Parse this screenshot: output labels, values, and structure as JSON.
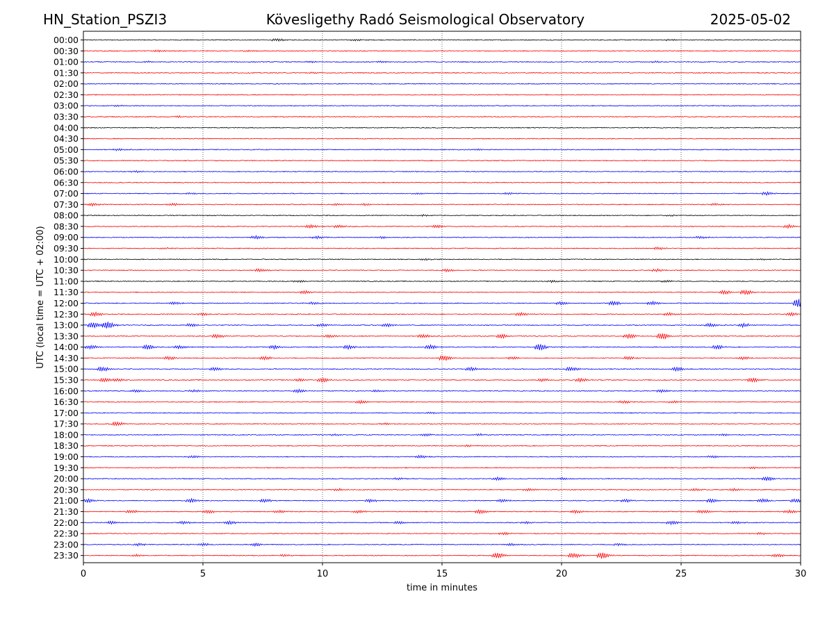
{
  "header": {
    "station": "HN_Station_PSZI3",
    "observatory": "Kövesligethy Radó Seismological Observatory",
    "date": "2025-05-02"
  },
  "colors": {
    "background": "#ffffff",
    "axis": "#000000",
    "grid": "#000000",
    "series_palette": [
      "#000000",
      "#ff0000",
      "#0000ff"
    ]
  },
  "chart_data": {
    "type": "line",
    "subtype": "helicorder",
    "title": "Kövesligethy Radó Seismological Observatory",
    "xlabel": "time in minutes",
    "ylabel": "UTC (local time = UTC + 02:00)",
    "xlim": [
      0,
      30
    ],
    "xticks": [
      0,
      5,
      10,
      15,
      20,
      25,
      30
    ],
    "grid": {
      "vertical_dotted_at": [
        5,
        10,
        15,
        20,
        25
      ],
      "horizontal": false
    },
    "legend": "none",
    "rows": [
      {
        "label": "00:00",
        "color": "#000000",
        "events": [
          [
            8.1,
            1
          ],
          [
            11.4,
            0.7
          ],
          [
            24.6,
            0.6
          ]
        ]
      },
      {
        "label": "00:30",
        "color": "#ff0000",
        "events": [
          [
            3.1,
            0.8
          ],
          [
            6.9,
            0.6
          ]
        ]
      },
      {
        "label": "01:00",
        "color": "#0000ff",
        "events": [
          [
            2.7,
            0.6
          ],
          [
            9.5,
            0.6
          ],
          [
            12.5,
            0.6
          ],
          [
            24.0,
            0.6
          ]
        ]
      },
      {
        "label": "01:30",
        "color": "#ff0000",
        "events": [
          [
            9.5,
            0.5
          ]
        ]
      },
      {
        "label": "02:00",
        "color": "#0000ff",
        "events": []
      },
      {
        "label": "02:30",
        "color": "#ff0000",
        "events": []
      },
      {
        "label": "03:00",
        "color": "#0000ff",
        "events": [
          [
            1.5,
            0.5
          ]
        ]
      },
      {
        "label": "03:30",
        "color": "#ff0000",
        "events": [
          [
            4.0,
            0.6
          ]
        ]
      },
      {
        "label": "04:00",
        "color": "#000000",
        "events": []
      },
      {
        "label": "04:30",
        "color": "#ff0000",
        "events": []
      },
      {
        "label": "05:00",
        "color": "#0000ff",
        "events": [
          [
            1.4,
            0.8
          ],
          [
            16.5,
            0.6
          ]
        ]
      },
      {
        "label": "05:30",
        "color": "#ff0000",
        "events": []
      },
      {
        "label": "06:00",
        "color": "#0000ff",
        "events": [
          [
            2.2,
            0.8
          ],
          [
            13.7,
            0.6
          ]
        ]
      },
      {
        "label": "06:30",
        "color": "#ff0000",
        "events": []
      },
      {
        "label": "07:00",
        "color": "#0000ff",
        "events": [
          [
            4.5,
            0.6
          ],
          [
            14.0,
            0.6
          ],
          [
            17.8,
            0.6
          ],
          [
            28.6,
            1.2
          ]
        ]
      },
      {
        "label": "07:30",
        "color": "#ff0000",
        "events": [
          [
            0.4,
            1.1
          ],
          [
            3.7,
            0.9
          ],
          [
            10.6,
            0.8
          ],
          [
            11.8,
            0.8
          ],
          [
            26.4,
            0.8
          ]
        ]
      },
      {
        "label": "08:00",
        "color": "#000000",
        "events": [
          [
            14.2,
            0.6
          ],
          [
            24.5,
            0.6
          ]
        ]
      },
      {
        "label": "08:30",
        "color": "#ff0000",
        "events": [
          [
            9.5,
            1.2
          ],
          [
            10.7,
            1.1
          ],
          [
            14.8,
            1.1
          ],
          [
            29.5,
            1.4
          ]
        ]
      },
      {
        "label": "09:00",
        "color": "#0000ff",
        "events": [
          [
            7.2,
            1.3
          ],
          [
            9.8,
            1
          ],
          [
            12.5,
            0.8
          ],
          [
            25.8,
            0.9
          ]
        ]
      },
      {
        "label": "09:30",
        "color": "#ff0000",
        "events": [
          [
            3.4,
            0.7
          ],
          [
            24.1,
            1
          ]
        ]
      },
      {
        "label": "10:00",
        "color": "#000000",
        "events": [
          [
            14.3,
            0.6
          ],
          [
            28.4,
            0.6
          ]
        ]
      },
      {
        "label": "10:30",
        "color": "#ff0000",
        "events": [
          [
            7.4,
            1.3
          ],
          [
            15.2,
            1.2
          ],
          [
            24.0,
            1
          ]
        ]
      },
      {
        "label": "11:00",
        "color": "#000000",
        "events": [
          [
            9.0,
            0.8
          ],
          [
            19.6,
            0.9
          ],
          [
            24.4,
            0.8
          ]
        ]
      },
      {
        "label": "11:30",
        "color": "#ff0000",
        "events": [
          [
            9.3,
            1.2
          ],
          [
            26.8,
            1.5
          ],
          [
            27.7,
            1.8
          ]
        ]
      },
      {
        "label": "12:00",
        "color": "#0000ff",
        "events": [
          [
            3.8,
            1
          ],
          [
            9.6,
            1
          ],
          [
            20.0,
            1.3
          ],
          [
            22.2,
            1.6
          ],
          [
            23.8,
            1.4
          ],
          [
            29.9,
            3.5
          ]
        ]
      },
      {
        "label": "12:30",
        "color": "#ff0000",
        "events": [
          [
            0.5,
            1.6
          ],
          [
            5.0,
            1
          ],
          [
            18.3,
            1.4
          ],
          [
            24.5,
            1.1
          ],
          [
            29.6,
            1.3
          ]
        ]
      },
      {
        "label": "13:00",
        "color": "#0000ff",
        "events": [
          [
            0.4,
            2.4
          ],
          [
            1.0,
            2.8
          ],
          [
            4.5,
            1.2
          ],
          [
            10.0,
            1.2
          ],
          [
            12.7,
            1.4
          ],
          [
            26.2,
            1.5
          ],
          [
            27.6,
            1.6
          ]
        ]
      },
      {
        "label": "13:30",
        "color": "#ff0000",
        "events": [
          [
            5.6,
            1.5
          ],
          [
            10.3,
            1.2
          ],
          [
            14.2,
            1.4
          ],
          [
            17.5,
            1.8
          ],
          [
            22.8,
            1.8
          ],
          [
            24.2,
            2.6
          ]
        ]
      },
      {
        "label": "14:00",
        "color": "#0000ff",
        "events": [
          [
            0.3,
            1.5
          ],
          [
            2.7,
            2
          ],
          [
            4.0,
            1.6
          ],
          [
            8.0,
            1.5
          ],
          [
            11.1,
            1.6
          ],
          [
            14.5,
            1.6
          ],
          [
            19.1,
            2.6
          ],
          [
            26.5,
            1.6
          ]
        ]
      },
      {
        "label": "14:30",
        "color": "#ff0000",
        "events": [
          [
            3.6,
            1.4
          ],
          [
            7.6,
            1.2
          ],
          [
            15.1,
            2.2
          ],
          [
            18.0,
            1.2
          ],
          [
            22.8,
            1.4
          ],
          [
            27.6,
            1.2
          ]
        ]
      },
      {
        "label": "15:00",
        "color": "#0000ff",
        "events": [
          [
            0.8,
            1.9
          ],
          [
            5.5,
            1.2
          ],
          [
            16.2,
            1.4
          ],
          [
            20.4,
            1.6
          ],
          [
            24.8,
            1.6
          ]
        ]
      },
      {
        "label": "15:30",
        "color": "#ff0000",
        "events": [
          [
            0.9,
            1.6
          ],
          [
            1.4,
            1.4
          ],
          [
            9.0,
            1
          ],
          [
            10.0,
            1.8
          ],
          [
            19.2,
            1.2
          ],
          [
            20.8,
            1.4
          ],
          [
            28.0,
            1.6
          ]
        ]
      },
      {
        "label": "16:00",
        "color": "#0000ff",
        "events": [
          [
            2.2,
            1.1
          ],
          [
            4.6,
            0.9
          ],
          [
            9.0,
            1.3
          ],
          [
            12.3,
            0.9
          ],
          [
            24.2,
            1
          ]
        ]
      },
      {
        "label": "16:30",
        "color": "#ff0000",
        "events": [
          [
            11.6,
            1.4
          ],
          [
            22.6,
            1
          ],
          [
            24.7,
            0.8
          ]
        ]
      },
      {
        "label": "17:00",
        "color": "#0000ff",
        "events": [
          [
            14.5,
            0.7
          ]
        ]
      },
      {
        "label": "17:30",
        "color": "#ff0000",
        "events": [
          [
            1.4,
            1.6
          ],
          [
            12.6,
            0.8
          ]
        ]
      },
      {
        "label": "18:00",
        "color": "#0000ff",
        "events": [
          [
            10.5,
            0.8
          ],
          [
            14.3,
            0.9
          ],
          [
            16.6,
            0.8
          ],
          [
            26.8,
            0.8
          ]
        ]
      },
      {
        "label": "18:30",
        "color": "#ff0000",
        "events": [
          [
            16.0,
            0.6
          ]
        ]
      },
      {
        "label": "19:00",
        "color": "#0000ff",
        "events": [
          [
            4.6,
            0.8
          ],
          [
            14.1,
            1.2
          ],
          [
            26.3,
            0.8
          ]
        ]
      },
      {
        "label": "19:30",
        "color": "#ff0000",
        "events": [
          [
            28.1,
            0.8
          ]
        ]
      },
      {
        "label": "20:00",
        "color": "#0000ff",
        "events": [
          [
            13.2,
            0.9
          ],
          [
            17.3,
            1.2
          ],
          [
            20.0,
            1
          ],
          [
            28.6,
            1.8
          ]
        ]
      },
      {
        "label": "20:30",
        "color": "#ff0000",
        "events": [
          [
            10.7,
            0.9
          ],
          [
            18.6,
            0.9
          ],
          [
            25.6,
            0.8
          ],
          [
            27.2,
            0.9
          ]
        ]
      },
      {
        "label": "21:00",
        "color": "#0000ff",
        "events": [
          [
            0.2,
            1.5
          ],
          [
            4.5,
            1.5
          ],
          [
            7.6,
            1.3
          ],
          [
            12.0,
            1.2
          ],
          [
            17.5,
            1.2
          ],
          [
            22.7,
            1.3
          ],
          [
            26.3,
            1.5
          ],
          [
            28.4,
            1.4
          ],
          [
            29.8,
            1.4
          ]
        ]
      },
      {
        "label": "21:30",
        "color": "#ff0000",
        "events": [
          [
            2.0,
            1.2
          ],
          [
            5.2,
            1.3
          ],
          [
            8.2,
            1.2
          ],
          [
            11.5,
            1.2
          ],
          [
            16.6,
            1.6
          ],
          [
            20.6,
            1.2
          ],
          [
            25.9,
            1.2
          ],
          [
            29.5,
            1.2
          ]
        ]
      },
      {
        "label": "22:00",
        "color": "#0000ff",
        "events": [
          [
            1.2,
            1.2
          ],
          [
            4.2,
            1.1
          ],
          [
            6.1,
            1.4
          ],
          [
            13.2,
            1
          ],
          [
            18.5,
            1
          ],
          [
            24.6,
            1.4
          ],
          [
            27.3,
            1
          ]
        ]
      },
      {
        "label": "22:30",
        "color": "#ff0000",
        "events": [
          [
            17.6,
            0.9
          ],
          [
            28.4,
            0.8
          ]
        ]
      },
      {
        "label": "23:00",
        "color": "#0000ff",
        "events": [
          [
            2.3,
            1.1
          ],
          [
            5.0,
            1
          ],
          [
            7.2,
            1.2
          ],
          [
            17.9,
            1
          ],
          [
            22.4,
            0.9
          ]
        ]
      },
      {
        "label": "23:30",
        "color": "#ff0000",
        "events": [
          [
            2.2,
            0.8
          ],
          [
            8.4,
            0.8
          ],
          [
            17.3,
            2.2
          ],
          [
            20.5,
            2
          ],
          [
            21.7,
            2.8
          ],
          [
            29.0,
            1.3
          ]
        ]
      }
    ]
  }
}
